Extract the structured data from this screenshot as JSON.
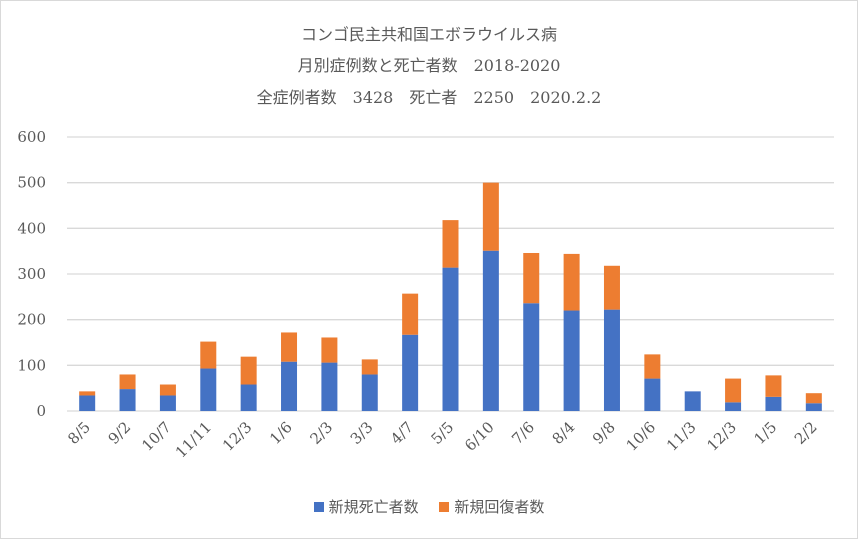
{
  "chart_data": {
    "type": "bar",
    "stacked": true,
    "title_lines": [
      "コンゴ民主共和国エボラウイルス病",
      "月別症例数と死亡者数　2018-2020",
      "全症例者数　3428　死亡者　2250　2020.2.2"
    ],
    "xlabel": "",
    "ylabel": "",
    "ylim": [
      0,
      600
    ],
    "yticks": [
      0,
      100,
      200,
      300,
      400,
      500,
      600
    ],
    "grid": true,
    "legend_placement": "bottom",
    "categories": [
      "8/5",
      "9/2",
      "10/7",
      "11/11",
      "12/3",
      "1/6",
      "2/3",
      "3/3",
      "4/7",
      "5/5",
      "6/10",
      "7/6",
      "8/4",
      "9/8",
      "10/6",
      "11/3",
      "12/3",
      "1/5",
      "2/2"
    ],
    "series": [
      {
        "name": "新規死亡者数",
        "color": "#4472c4",
        "values": [
          34,
          48,
          34,
          93,
          58,
          108,
          106,
          80,
          167,
          314,
          351,
          236,
          220,
          222,
          71,
          43,
          19,
          31,
          17
        ]
      },
      {
        "name": "新規回復者数",
        "color": "#ed7d31",
        "values": [
          9,
          32,
          24,
          59,
          61,
          64,
          55,
          33,
          90,
          104,
          149,
          110,
          124,
          96,
          53,
          0,
          52,
          47,
          22
        ]
      }
    ]
  }
}
